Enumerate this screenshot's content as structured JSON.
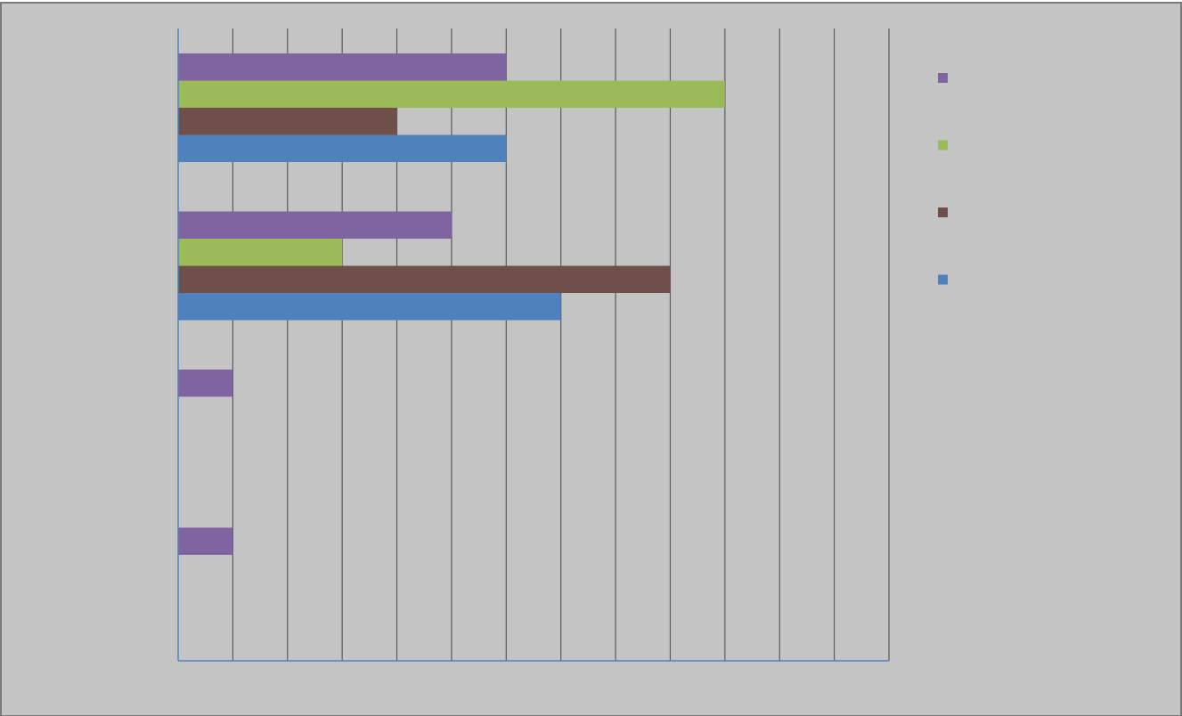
{
  "chart_data": {
    "type": "bar",
    "orientation": "horizontal",
    "title": "",
    "xlabel": "",
    "ylabel": "",
    "xlim": [
      0,
      13
    ],
    "grid": true,
    "legend_position": "right",
    "categories": [
      "",
      "",
      "",
      ""
    ],
    "series": [
      {
        "color": "#4f81bd",
        "values": [
          6,
          7,
          0,
          0
        ]
      },
      {
        "color": "#6f4f4a",
        "values": [
          4,
          9,
          0,
          0
        ]
      },
      {
        "color": "#9bbb59",
        "values": [
          10,
          3,
          0,
          0
        ]
      },
      {
        "color": "#8064a2",
        "values": [
          6,
          5,
          1,
          1
        ]
      }
    ]
  },
  "colors": {
    "background": "#c4c4c4",
    "frame": "#7a7a7a",
    "axis": "#4f81bd",
    "gridline": "#5a5a5a"
  }
}
